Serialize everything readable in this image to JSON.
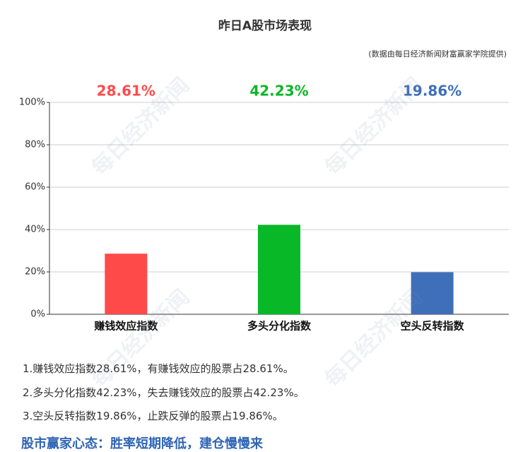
{
  "chart_data": {
    "type": "bar",
    "title": "昨日A股市场表现",
    "subtitle": "(数据由每日经济新闻财富赢家学院提供)",
    "categories": [
      "赚钱效应指数",
      "多头分化指数",
      "空头反转指数"
    ],
    "values": [
      28.61,
      42.23,
      19.86
    ],
    "value_labels": [
      "28.61%",
      "42.23%",
      "19.86%"
    ],
    "colors": [
      "#ff4a4a",
      "#09b826",
      "#3f6fb9"
    ],
    "ylim": [
      0,
      100
    ],
    "yticks": [
      {
        "value": 0,
        "label": "0%"
      },
      {
        "value": 20,
        "label": "20%"
      },
      {
        "value": 40,
        "label": "40%"
      },
      {
        "value": 60,
        "label": "60%"
      },
      {
        "value": 80,
        "label": "80%"
      },
      {
        "value": 100,
        "label": "100%"
      }
    ],
    "grid": true
  },
  "watermark": "每日经济新闻",
  "notes": [
    "1.赚钱效应指数28.61%，有赚钱效应的股票占28.61%。",
    "2.多头分化指数42.23%，失去赚钱效应的股票占42.23%。",
    "3.空头反转指数19.86%，止跌反弹的股票占19.86%。"
  ],
  "conclusion": "股市赢家心态：胜率短期降低，建仓慢慢来"
}
